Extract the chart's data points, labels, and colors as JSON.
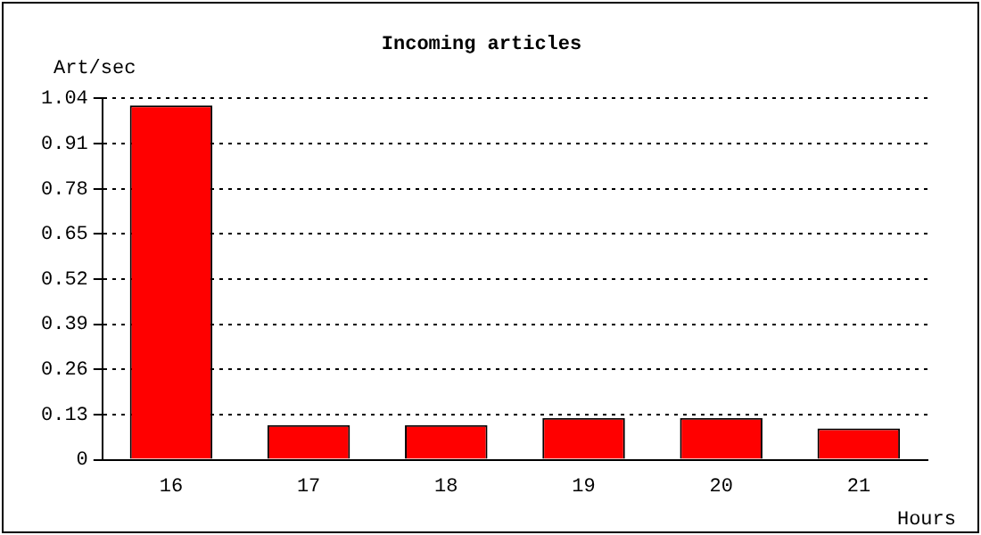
{
  "chart_data": {
    "type": "bar",
    "title": "Incoming articles",
    "xlabel": "Hours",
    "ylabel": "Art/sec",
    "categories": [
      "16",
      "17",
      "18",
      "19",
      "20",
      "21"
    ],
    "values": [
      1.02,
      0.1,
      0.1,
      0.12,
      0.12,
      0.09
    ],
    "color": "#ff0000",
    "ylim": [
      0,
      1.04
    ],
    "yticks": [
      0,
      0.13,
      0.26,
      0.39,
      0.52,
      0.65,
      0.78,
      0.91,
      1.04
    ],
    "grid": "y",
    "legend": false
  }
}
